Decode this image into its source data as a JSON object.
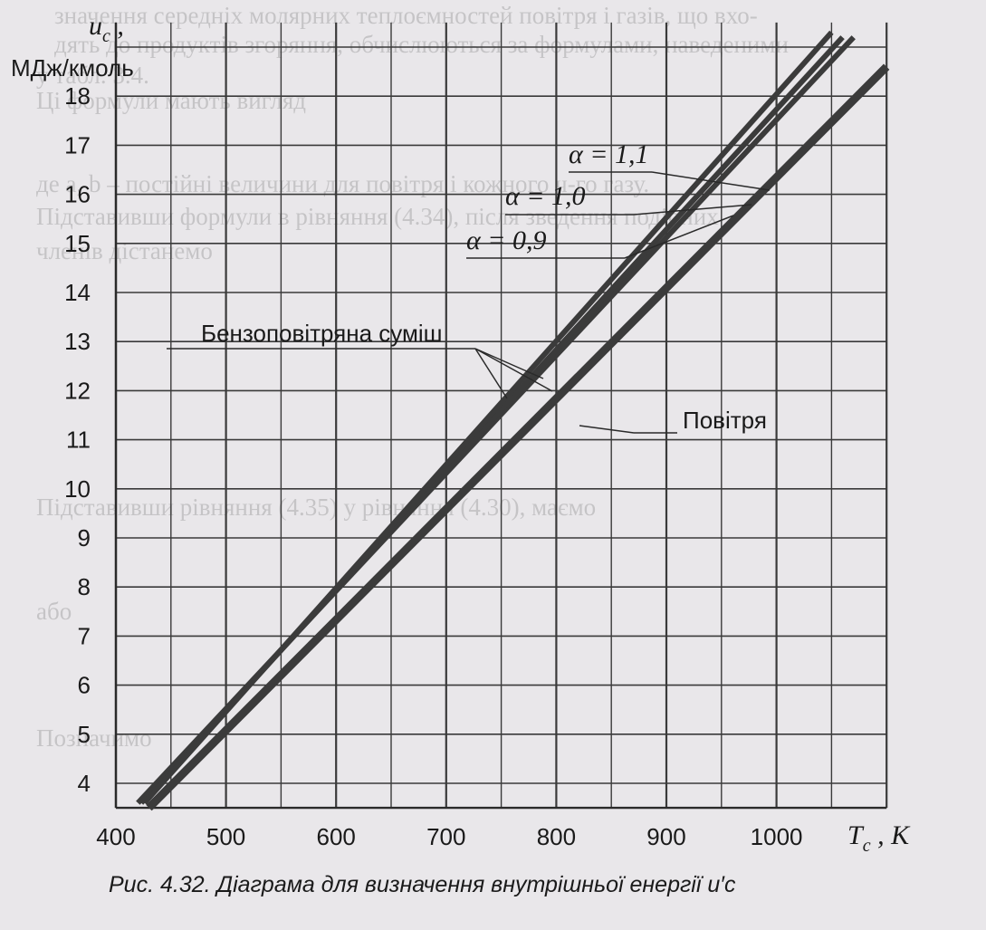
{
  "chart_data": {
    "type": "line",
    "title": "",
    "caption": "Рис. 4.32. Діаграма для визначення внутрішньої енергії u′c",
    "ylabel": {
      "symbol": "u",
      "subscript": "c",
      "suffix": " ,",
      "units": "МДж/кмоль"
    },
    "xlabel": {
      "symbol": "T",
      "subscript": "c",
      "units": " , K"
    },
    "x_ticks": [
      400,
      500,
      600,
      700,
      800,
      900,
      1000
    ],
    "y_ticks": [
      4,
      5,
      6,
      7,
      8,
      9,
      10,
      11,
      12,
      13,
      14,
      15,
      16,
      17,
      18
    ],
    "xlim": [
      400,
      1100
    ],
    "ylim": [
      3.5,
      19.5
    ],
    "grid": true,
    "series": [
      {
        "name": "Повітря",
        "x": [
          430,
          1100
        ],
        "y": [
          3.5,
          18.6
        ]
      },
      {
        "name": "α = 0,9",
        "x": [
          420,
          1070
        ],
        "y": [
          3.6,
          19.2
        ]
      },
      {
        "name": "α = 1,0",
        "x": [
          423,
          1060
        ],
        "y": [
          3.6,
          19.2
        ]
      },
      {
        "name": "α = 1,1",
        "x": [
          426,
          1050
        ],
        "y": [
          3.6,
          19.3
        ]
      }
    ],
    "annotations": {
      "alpha_11": "α = 1,1",
      "alpha_10": "α = 1,0",
      "alpha_09": "α = 0,9",
      "mixture": "Бензоповітряна  суміш",
      "air": "Повітря"
    }
  },
  "background_text": [
    "значення середніх молярних теплоємностей повітря і газів, що вхо-",
    "дять до продуктів згоряння, обчислюються за формулами, наведеними",
    "у табл. 3.4.",
    "Ці формули мають вигляд",
    "де a, b – постійні величини для повітря і кожного ч-го газу.",
    "Підставивши формули в рівняння (4.34), після зведення подібних",
    "членів дістанемо",
    "Підставивши рівняння (4.35) у рівняння (4.30), маємо",
    "або",
    "Позначимо"
  ]
}
